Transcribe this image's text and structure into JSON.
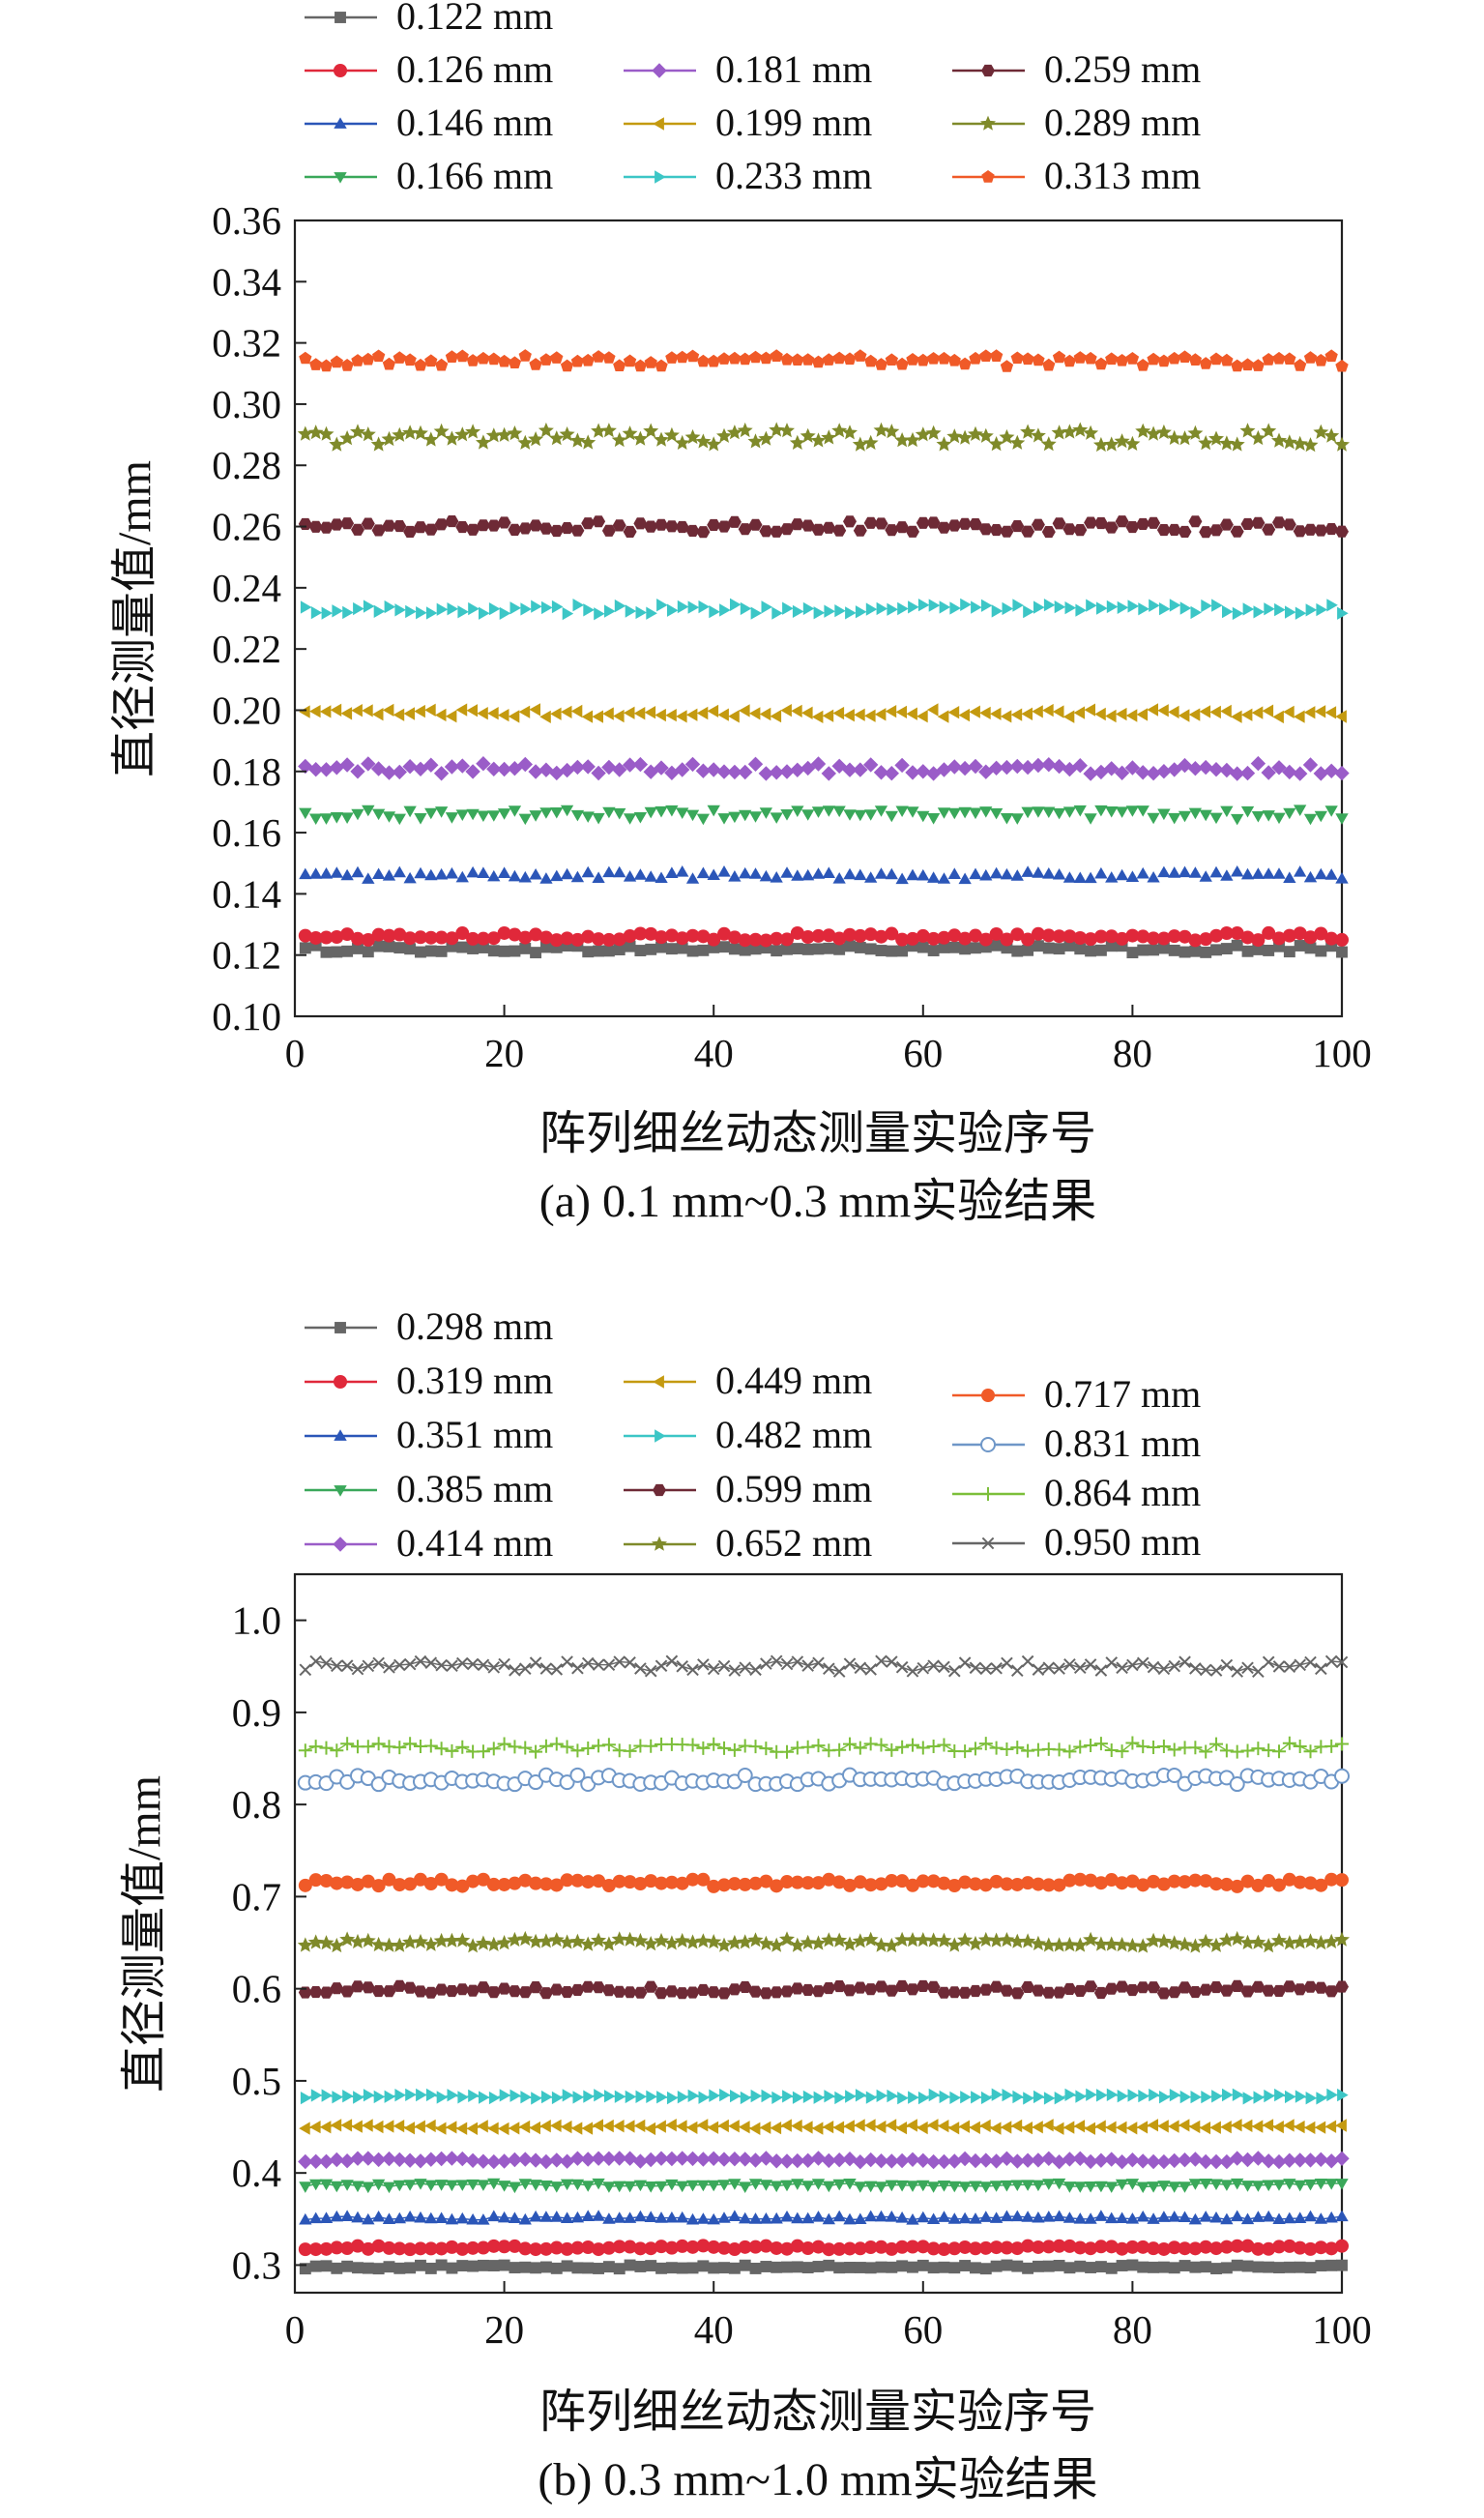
{
  "chart_data": [
    {
      "type": "scatter",
      "caption": "(a) 0.1 mm~0.3 mm实验结果",
      "xlabel": "阵列细丝动态测量实验序号",
      "ylabel": "直径测量值/mm",
      "xlim": [
        0,
        100
      ],
      "ylim": [
        0.1,
        0.36
      ],
      "xticks": [
        "0",
        "20",
        "40",
        "60",
        "80",
        "100"
      ],
      "yticks": [
        "0.10",
        "0.12",
        "0.14",
        "0.16",
        "0.18",
        "0.20",
        "0.22",
        "0.24",
        "0.26",
        "0.28",
        "0.30",
        "0.32",
        "0.34",
        "0.36"
      ],
      "grid": false,
      "legend_position": "top",
      "points_per_series": 100,
      "series": [
        {
          "name": "0.122 mm",
          "mean": 0.122,
          "amplitude": 0.0012,
          "color": "#666666",
          "marker": "square"
        },
        {
          "name": "0.126 mm",
          "mean": 0.126,
          "amplitude": 0.0012,
          "color": "#e0283a",
          "marker": "circle"
        },
        {
          "name": "0.146 mm",
          "mean": 0.146,
          "amplitude": 0.0012,
          "color": "#2b56b8",
          "marker": "triangle-up"
        },
        {
          "name": "0.166 mm",
          "mean": 0.166,
          "amplitude": 0.0015,
          "color": "#3aa85a",
          "marker": "triangle-down"
        },
        {
          "name": "0.181 mm",
          "mean": 0.181,
          "amplitude": 0.0018,
          "color": "#9a5cc8",
          "marker": "diamond"
        },
        {
          "name": "0.199 mm",
          "mean": 0.199,
          "amplitude": 0.0012,
          "color": "#c49a10",
          "marker": "triangle-left"
        },
        {
          "name": "0.233 mm",
          "mean": 0.233,
          "amplitude": 0.0015,
          "color": "#3cc6c6",
          "marker": "triangle-right"
        },
        {
          "name": "0.259 mm",
          "mean": 0.26,
          "amplitude": 0.0018,
          "color": "#6e2a36",
          "marker": "hexagon"
        },
        {
          "name": "0.289 mm",
          "mean": 0.289,
          "amplitude": 0.0025,
          "color": "#7f8a2a",
          "marker": "star"
        },
        {
          "name": "0.313 mm",
          "mean": 0.314,
          "amplitude": 0.0018,
          "color": "#f05a28",
          "marker": "pentagon"
        }
      ],
      "legend_columns": [
        [
          "0.122 mm",
          "0.126 mm",
          "0.146 mm",
          "0.166 mm"
        ],
        [
          "0.181 mm",
          "0.199 mm",
          "0.233 mm"
        ],
        [
          "0.259 mm",
          "0.289 mm",
          "0.313 mm"
        ]
      ]
    },
    {
      "type": "scatter",
      "caption": "(b) 0.3 mm~1.0 mm实验结果",
      "xlabel": "阵列细丝动态测量实验序号",
      "ylabel": "直径测量值/mm",
      "xlim": [
        0,
        100
      ],
      "ylim": [
        0.27,
        1.05
      ],
      "xticks": [
        "0",
        "20",
        "40",
        "60",
        "80",
        "100"
      ],
      "yticks": [
        "0.3",
        "0.4",
        "0.5",
        "0.6",
        "0.7",
        "0.8",
        "0.9",
        "1.0"
      ],
      "grid": false,
      "legend_position": "top",
      "points_per_series": 100,
      "series": [
        {
          "name": "0.298 mm",
          "mean": 0.298,
          "amplitude": 0.002,
          "color": "#666666",
          "marker": "square"
        },
        {
          "name": "0.319 mm",
          "mean": 0.319,
          "amplitude": 0.002,
          "color": "#e0283a",
          "marker": "circle"
        },
        {
          "name": "0.351 mm",
          "mean": 0.351,
          "amplitude": 0.002,
          "color": "#2b56b8",
          "marker": "triangle-up"
        },
        {
          "name": "0.385 mm",
          "mean": 0.387,
          "amplitude": 0.002,
          "color": "#3aa85a",
          "marker": "triangle-down"
        },
        {
          "name": "0.414 mm",
          "mean": 0.414,
          "amplitude": 0.002,
          "color": "#9a5cc8",
          "marker": "diamond"
        },
        {
          "name": "0.449 mm",
          "mean": 0.45,
          "amplitude": 0.002,
          "color": "#c49a10",
          "marker": "triangle-left"
        },
        {
          "name": "0.482 mm",
          "mean": 0.483,
          "amplitude": 0.002,
          "color": "#3cc6c6",
          "marker": "triangle-right"
        },
        {
          "name": "0.599 mm",
          "mean": 0.599,
          "amplitude": 0.004,
          "color": "#6e2a36",
          "marker": "hexagon"
        },
        {
          "name": "0.652 mm",
          "mean": 0.65,
          "amplitude": 0.004,
          "color": "#7f8a2a",
          "marker": "star"
        },
        {
          "name": "0.717 mm",
          "mean": 0.715,
          "amplitude": 0.004,
          "color": "#f05a28",
          "marker": "circle"
        },
        {
          "name": "0.831 mm",
          "mean": 0.827,
          "amplitude": 0.005,
          "color": "#6f97c8",
          "marker": "ring"
        },
        {
          "name": "0.864 mm",
          "mean": 0.862,
          "amplitude": 0.005,
          "color": "#7cbf3a",
          "marker": "plus"
        },
        {
          "name": "0.950 mm",
          "mean": 0.95,
          "amplitude": 0.006,
          "color": "#666666",
          "marker": "cross"
        }
      ],
      "legend_columns": [
        [
          "0.298 mm",
          "0.319 mm",
          "0.351 mm",
          "0.385 mm",
          "0.414 mm"
        ],
        [
          "0.449 mm",
          "0.482 mm",
          "0.599 mm",
          "0.652 mm"
        ],
        [
          "0.717 mm",
          "0.831 mm",
          "0.864 mm",
          "0.950 mm"
        ]
      ]
    }
  ]
}
